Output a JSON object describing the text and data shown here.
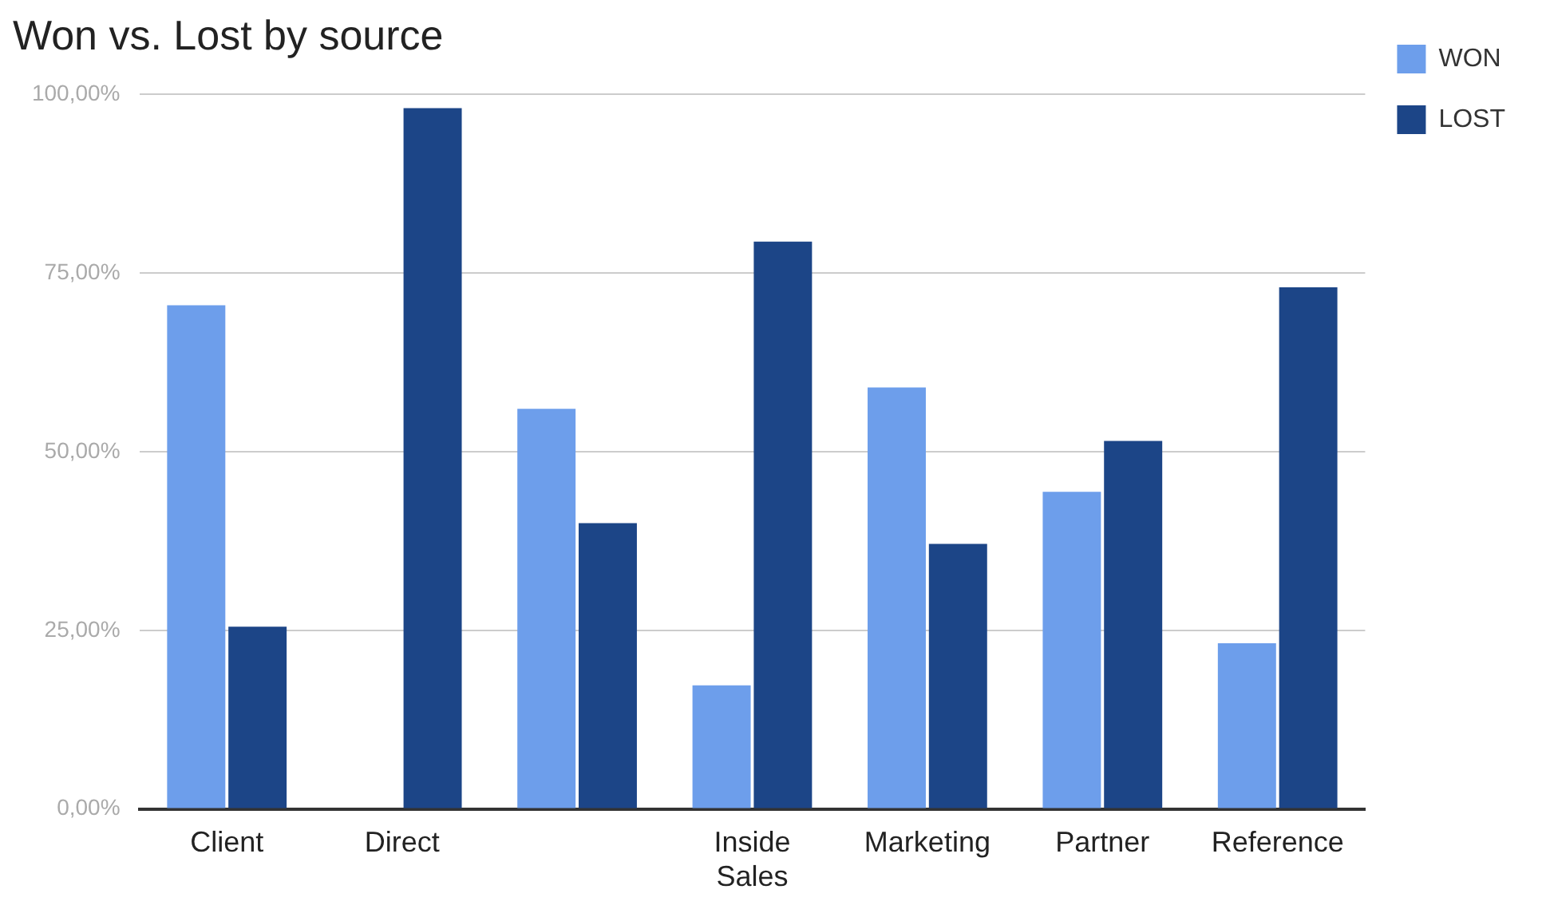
{
  "chart_data": {
    "type": "bar",
    "title": "Won vs. Lost by source",
    "categories": [
      "Client",
      "Direct",
      null,
      "Inside Sales",
      "Marketing",
      "Partner",
      "Reference"
    ],
    "series": [
      {
        "name": "WON",
        "color": "#6d9eeb",
        "values": [
          70.5,
          0,
          56,
          17.3,
          59,
          44.4,
          23.2
        ]
      },
      {
        "name": "LOST",
        "color": "#1c4587",
        "values": [
          25.5,
          98.1,
          40,
          79.4,
          37.1,
          51.5,
          73
        ]
      }
    ],
    "ylim": [
      0,
      100
    ],
    "yticks": [
      {
        "value": 0,
        "label": "0,00%"
      },
      {
        "value": 25,
        "label": "25,00%"
      },
      {
        "value": 50,
        "label": "50,00%"
      },
      {
        "value": 75,
        "label": "75,00%"
      },
      {
        "value": 100,
        "label": "100,00%"
      }
    ],
    "grid": "y",
    "legend": "top right"
  }
}
